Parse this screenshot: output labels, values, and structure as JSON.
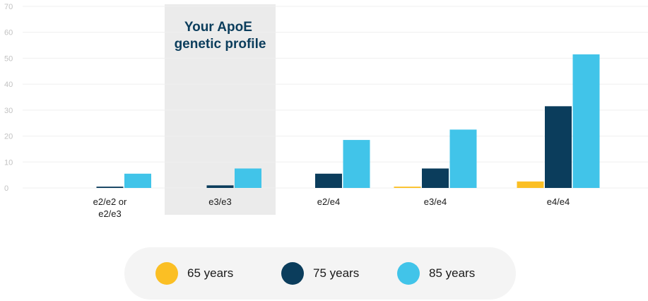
{
  "chart_data": {
    "type": "bar",
    "categories": [
      "e2/e2 or e2/e3",
      "e3/e3",
      "e2/e4",
      "e3/e4",
      "e4/e4"
    ],
    "category_label_lines": [
      [
        "e2/e2 or",
        "e2/e3"
      ],
      [
        "e3/e3"
      ],
      [
        "e2/e4"
      ],
      [
        "e3/e4"
      ],
      [
        "e4/e4"
      ]
    ],
    "series": [
      {
        "name": "65 years",
        "color": "#fbbf24",
        "values": [
          0,
          0,
          0,
          0.5,
          2.5
        ]
      },
      {
        "name": "75 years",
        "color": "#0b3d5c",
        "values": [
          0.5,
          1,
          5.5,
          7.5,
          31.5
        ]
      },
      {
        "name": "85 years",
        "color": "#41c4e9",
        "values": [
          5.5,
          7.5,
          18.5,
          22.5,
          51.5
        ]
      }
    ],
    "ylim": [
      0,
      70
    ],
    "yticks": [
      0,
      10,
      20,
      30,
      40,
      50,
      60,
      70
    ],
    "grid": true,
    "highlight": {
      "category_index": 1,
      "lines": [
        "Your ApoE",
        "genetic profile"
      ],
      "color": "#0b3d5c"
    },
    "legend_placement": "bottom"
  }
}
